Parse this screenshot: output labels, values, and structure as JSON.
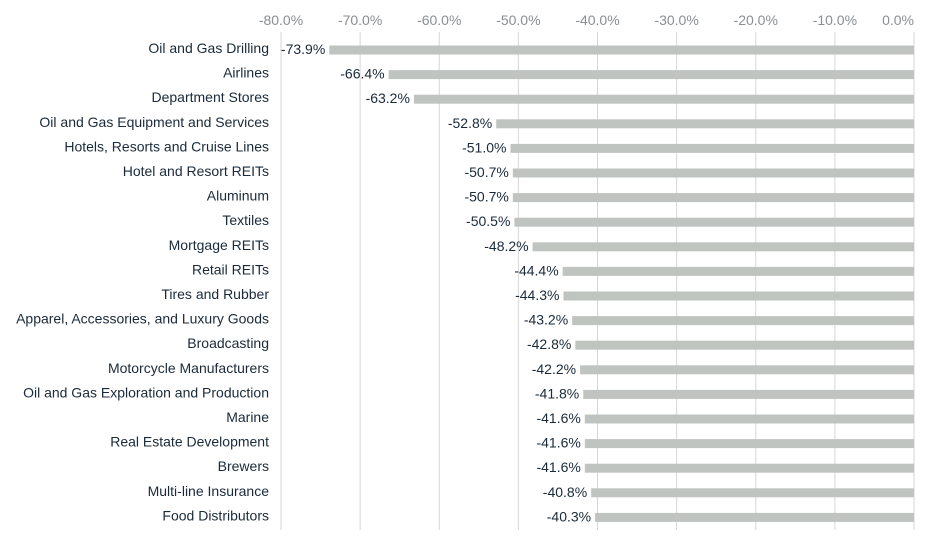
{
  "chart_data": {
    "type": "bar",
    "orientation": "horizontal",
    "title": "",
    "xlabel": "",
    "ylabel": "",
    "xlim": [
      -80,
      0
    ],
    "ticks": [
      -80,
      -70,
      -60,
      -50,
      -40,
      -30,
      -20,
      -10,
      0
    ],
    "tick_labels": [
      "-80.0%",
      "-70.0%",
      "-60.0%",
      "-50.0%",
      "-40.0%",
      "-30.0%",
      "-20.0%",
      "-10.0%",
      "0.0%"
    ],
    "axis_position": "top",
    "grid": true,
    "bar_color": "#bfc4c1",
    "text_color": "#1a2a3a",
    "tick_color": "#8a8e92",
    "grid_color": "#d6d6d6",
    "categories": [
      "Oil and Gas Drilling",
      "Airlines",
      "Department Stores",
      "Oil and Gas Equipment and Services",
      "Hotels, Resorts and Cruise Lines",
      "Hotel and Resort REITs",
      "Aluminum",
      "Textiles",
      "Mortgage REITs",
      "Retail REITs",
      "Tires and Rubber",
      "Apparel, Accessories, and Luxury Goods",
      "Broadcasting",
      "Motorcycle Manufacturers",
      "Oil and Gas Exploration and Production",
      "Marine",
      "Real Estate Development",
      "Brewers",
      "Multi-line Insurance",
      "Food Distributors"
    ],
    "values": [
      -73.9,
      -66.4,
      -63.2,
      -52.8,
      -51.0,
      -50.7,
      -50.7,
      -50.5,
      -48.2,
      -44.4,
      -44.3,
      -43.2,
      -42.8,
      -42.2,
      -41.8,
      -41.6,
      -41.6,
      -41.6,
      -40.8,
      -40.3
    ],
    "data_labels": [
      "-73.9%",
      "-66.4%",
      "-63.2%",
      "-52.8%",
      "-51.0%",
      "-50.7%",
      "-50.7%",
      "-50.5%",
      "-48.2%",
      "-44.4%",
      "-44.3%",
      "-43.2%",
      "-42.8%",
      "-42.2%",
      "-41.8%",
      "-41.6%",
      "-41.6%",
      "-41.6%",
      "-40.8%",
      "-40.3%"
    ]
  }
}
